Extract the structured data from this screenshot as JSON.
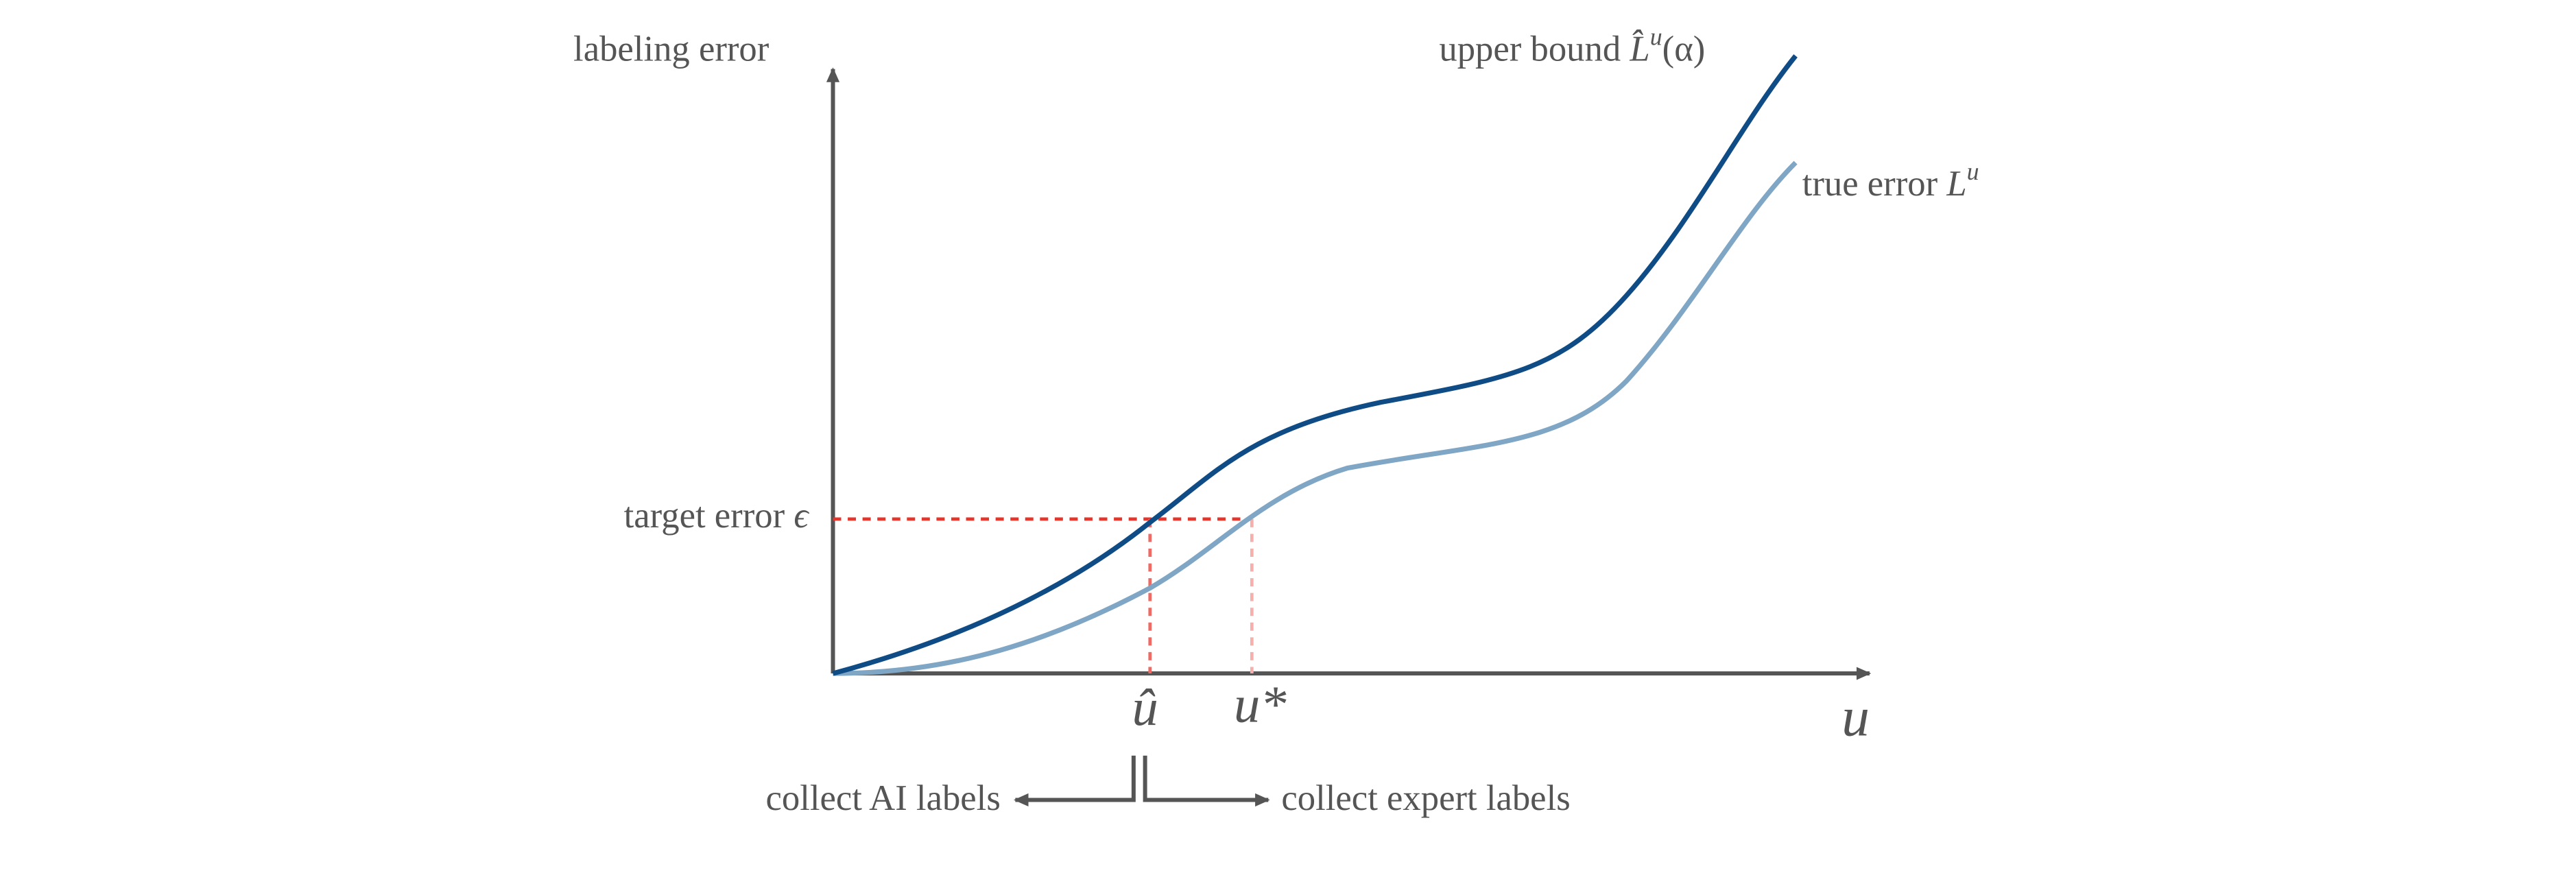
{
  "diagram": {
    "y_axis_label": "labeling error",
    "x_axis_label": "u",
    "upper_bound": {
      "text": "upper bound",
      "symbol": "L̂",
      "superscript": "u",
      "argument": "(α)"
    },
    "true_error": {
      "text": "true error",
      "symbol": "L",
      "superscript": "u"
    },
    "target_error": {
      "text": "target error",
      "symbol": "ϵ"
    },
    "u_hat": "û",
    "u_star": "u*",
    "left_action": "collect AI labels",
    "right_action": "collect expert labels"
  }
}
